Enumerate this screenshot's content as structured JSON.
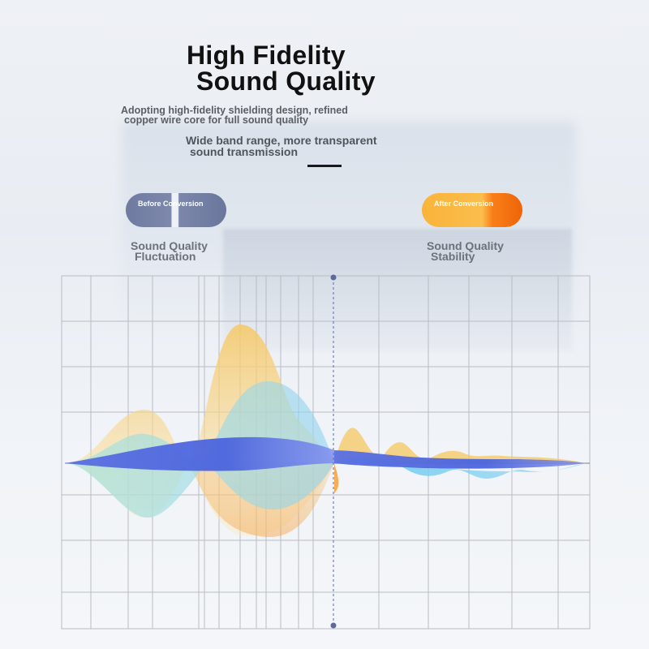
{
  "header": {
    "title_line1": "High Fidelity",
    "title_line2": "Sound Quality",
    "desc1_line1": "Adopting high-fidelity shielding design, refined",
    "desc1_line2": "copper wire core for full sound quality",
    "desc2_line1": "Wide band range, more transparent",
    "desc2_line2": "sound transmission"
  },
  "badges": {
    "before": "Before Conversion",
    "after": "After Conversion"
  },
  "labels": {
    "left_line1": "Sound Quality",
    "left_line2": "Fluctuation",
    "right_line1": "Sound Quality",
    "right_line2": "Stability"
  },
  "colors": {
    "wave_yellow": "#f5c860",
    "wave_orange": "#f7a23a",
    "wave_teal": "#8fd9d6",
    "wave_blue": "#4a63dc",
    "wave_cyan": "#6fc7ef",
    "before_badge": "#6e7aa0",
    "after_badge": "#f7941d"
  }
}
